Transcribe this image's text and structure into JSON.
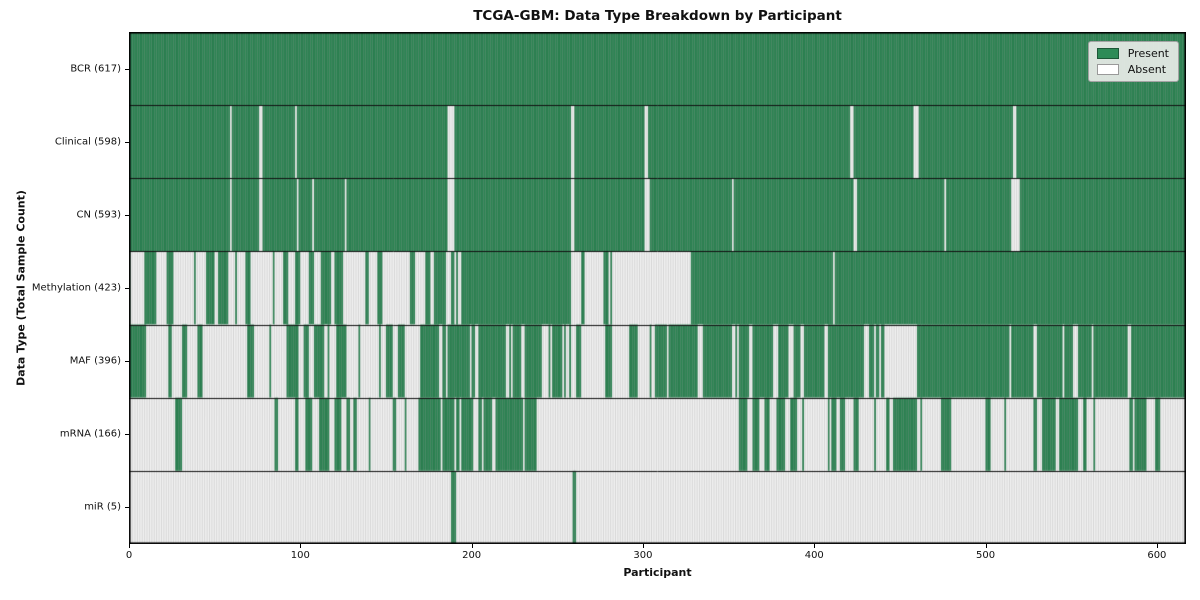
{
  "title": "TCGA-GBM: Data Type Breakdown by Participant",
  "x_axis": {
    "label": "Participant",
    "ticks": [
      0,
      100,
      200,
      300,
      400,
      500,
      600
    ]
  },
  "y_axis": {
    "label": "Data Type (Total Sample Count)"
  },
  "legend": {
    "items": [
      {
        "label": "Present",
        "color": "#2e8b57",
        "edge": "#1d5737"
      },
      {
        "label": "Absent",
        "color": "#ffffff",
        "edge": "#999999"
      }
    ]
  },
  "colors": {
    "present": "#2e8b57",
    "absent": "#ffffff",
    "bar_edge": "rgba(0,0,0,0.32)",
    "row_separator": "#111111",
    "plot_border": "#000000",
    "background": "#ffffff"
  },
  "chart_data": {
    "type": "heatmap",
    "title": "TCGA-GBM: Data Type Breakdown by Participant",
    "xlabel": "Participant",
    "ylabel": "Data Type (Total Sample Count)",
    "x_range": [
      0,
      617
    ],
    "n_participants": 617,
    "legend_position": "upper right",
    "value_meaning": {
      "1": "Present",
      "0": "Absent"
    },
    "rows": [
      {
        "label": "BCR (617)",
        "data_type": "BCR",
        "present_count": 617,
        "blocks": [
          [
            0,
            617,
            1
          ]
        ]
      },
      {
        "label": "Clinical (598)",
        "data_type": "Clinical",
        "present_count": 598,
        "blocks": [
          [
            0,
            59,
            1
          ],
          [
            59,
            60,
            0
          ],
          [
            60,
            76,
            1
          ],
          [
            76,
            78,
            0
          ],
          [
            78,
            97,
            1
          ],
          [
            97,
            98,
            0
          ],
          [
            98,
            186,
            1
          ],
          [
            186,
            190,
            0
          ],
          [
            190,
            258,
            1
          ],
          [
            258,
            260,
            0
          ],
          [
            260,
            301,
            1
          ],
          [
            301,
            303,
            0
          ],
          [
            303,
            421,
            1
          ],
          [
            421,
            423,
            0
          ],
          [
            423,
            458,
            1
          ],
          [
            458,
            461,
            0
          ],
          [
            461,
            516,
            1
          ],
          [
            516,
            518,
            0
          ],
          [
            518,
            617,
            1
          ]
        ]
      },
      {
        "label": "CN (593)",
        "data_type": "CN",
        "present_count": 593,
        "blocks": [
          [
            0,
            59,
            1
          ],
          [
            59,
            60,
            0
          ],
          [
            60,
            76,
            1
          ],
          [
            76,
            78,
            0
          ],
          [
            78,
            98,
            1
          ],
          [
            98,
            99,
            0
          ],
          [
            99,
            107,
            1
          ],
          [
            107,
            108,
            0
          ],
          [
            108,
            126,
            1
          ],
          [
            126,
            127,
            0
          ],
          [
            127,
            186,
            1
          ],
          [
            186,
            190,
            0
          ],
          [
            190,
            258,
            1
          ],
          [
            258,
            260,
            0
          ],
          [
            260,
            301,
            1
          ],
          [
            301,
            304,
            0
          ],
          [
            304,
            352,
            1
          ],
          [
            352,
            353,
            0
          ],
          [
            353,
            423,
            1
          ],
          [
            423,
            425,
            0
          ],
          [
            425,
            476,
            1
          ],
          [
            476,
            477,
            0
          ],
          [
            477,
            515,
            1
          ],
          [
            515,
            520,
            0
          ],
          [
            520,
            617,
            1
          ]
        ]
      },
      {
        "label": "Methylation (423)",
        "data_type": "Methylation",
        "present_count": 423,
        "blocks": [
          [
            0,
            28,
            0.7
          ],
          [
            28,
            45,
            0.12
          ],
          [
            45,
            50,
            1
          ],
          [
            50,
            63,
            0.5
          ],
          [
            63,
            96,
            0.2
          ],
          [
            96,
            126,
            0.55
          ],
          [
            126,
            168,
            0.22
          ],
          [
            168,
            197,
            0.5
          ],
          [
            197,
            258,
            1
          ],
          [
            258,
            328,
            0.03
          ],
          [
            328,
            411,
            1
          ],
          [
            411,
            412,
            0
          ],
          [
            412,
            518,
            1
          ],
          [
            518,
            520,
            0.5
          ],
          [
            520,
            617,
            1
          ]
        ]
      },
      {
        "label": "MAF (396)",
        "data_type": "MAF",
        "present_count": 396,
        "blocks": [
          [
            0,
            10,
            0.8
          ],
          [
            10,
            91,
            0.12
          ],
          [
            91,
            130,
            0.72
          ],
          [
            130,
            178,
            0.5
          ],
          [
            178,
            253,
            0.82
          ],
          [
            253,
            308,
            0.18
          ],
          [
            308,
            328,
            0.9
          ],
          [
            328,
            356,
            0.5
          ],
          [
            356,
            435,
            0.85
          ],
          [
            435,
            462,
            0.45
          ],
          [
            462,
            617,
            0.88
          ]
        ]
      },
      {
        "label": "mRNA (166)",
        "data_type": "mRNA",
        "present_count": 166,
        "blocks": [
          [
            0,
            27,
            0.03
          ],
          [
            27,
            31,
            0.6
          ],
          [
            31,
            91,
            0.03
          ],
          [
            91,
            123,
            0.55
          ],
          [
            123,
            175,
            0.15
          ],
          [
            175,
            238,
            0.6
          ],
          [
            238,
            318,
            0.06
          ],
          [
            318,
            356,
            0.04
          ],
          [
            356,
            390,
            0.7
          ],
          [
            390,
            437,
            0.2
          ],
          [
            437,
            477,
            0.4
          ],
          [
            477,
            529,
            0.25
          ],
          [
            529,
            565,
            0.6
          ],
          [
            565,
            584,
            0.05
          ],
          [
            584,
            604,
            0.6
          ],
          [
            604,
            617,
            0.05
          ]
        ]
      },
      {
        "label": "miR (5)",
        "data_type": "miR",
        "present_count": 5,
        "blocks": [
          [
            0,
            188,
            0
          ],
          [
            188,
            191,
            1
          ],
          [
            191,
            259,
            0
          ],
          [
            259,
            261,
            1
          ],
          [
            261,
            617,
            0
          ]
        ]
      }
    ]
  }
}
